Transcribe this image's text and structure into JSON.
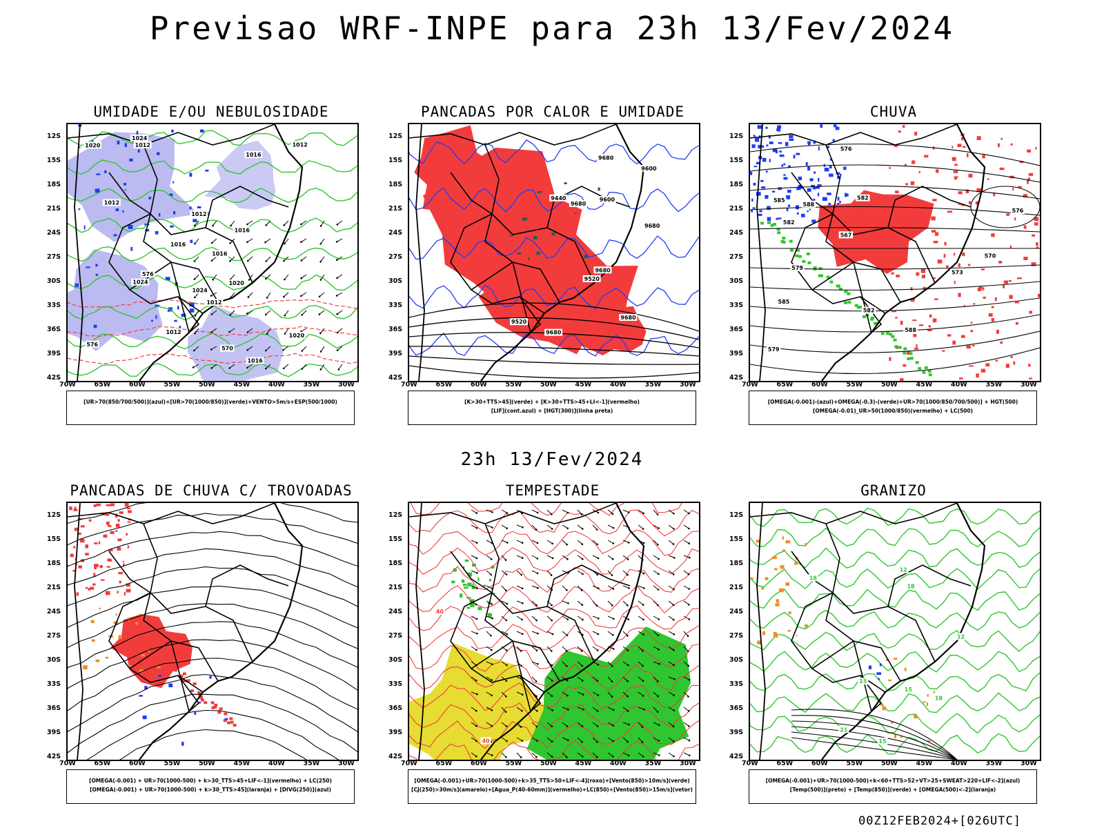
{
  "header": {
    "title": "Previsao WRF-INPE  para 23h 13/Fev/2024"
  },
  "mid_date": "23h 13/Fev/2024",
  "footer": "00Z12FEB2024+[026UTC]",
  "axes": {
    "lat_labels": [
      "12S",
      "15S",
      "18S",
      "21S",
      "24S",
      "27S",
      "30S",
      "33S",
      "36S",
      "39S",
      "42S"
    ],
    "lon_labels": [
      "70W",
      "65W",
      "60W",
      "55W",
      "50W",
      "45W",
      "40W",
      "35W",
      "30W"
    ]
  },
  "colors": {
    "red": "#f23c3c",
    "blue": "#1f3cf5",
    "green": "#2fc62f",
    "lavender": "#b4b4f0",
    "yellow": "#e6dc32",
    "orange": "#f08c28",
    "darkgreen": "#2f5a4a"
  },
  "panels": [
    {
      "id": "umidade",
      "title": "UMIDADE E/OU NEBULOSIDADE",
      "legend": [
        "[UR>70(850/700/500)](azul)+[UR>70(1000/850)](verde)+VENTO>5m/s+ESP(500/1000)"
      ],
      "contour_labels": [
        "1016",
        "1016",
        "1020",
        "1012",
        "1012",
        "1020",
        "1016",
        "1024",
        "1012",
        "1024",
        "1016",
        "1012",
        "1020",
        "1012",
        "1024",
        "1012",
        "1016",
        "570",
        "576",
        "576"
      ]
    },
    {
      "id": "pancadas_calor",
      "title": "PANCADAS POR CALOR E UMIDADE",
      "legend": [
        "[K>30+TTS>45](verde) + [K>30+TTS>45+LI<-1](vermelho)",
        "[LIF](cont.azul) + [HGT(300)](linha preta)"
      ],
      "contour_labels": [
        "9680",
        "9680",
        "9680",
        "9680",
        "9600",
        "9680",
        "9600",
        "9520",
        "9440",
        "9520",
        "9680"
      ]
    },
    {
      "id": "chuva",
      "title": "CHUVA",
      "legend": [
        "[OMEGA(-0.001)-(azul)+OMEGA(-0.3)-(verde)+UR>70(1000/850/700/500)] + HGT(500)",
        "[OMEGA(-0.01)_UR>50(1000/850)(vermelho) + LC(500)"
      ],
      "contour_labels": [
        "588",
        "588",
        "585",
        "582",
        "582",
        "585",
        "582",
        "579",
        "576",
        "573",
        "570",
        "567",
        "579",
        "576"
      ]
    },
    {
      "id": "trovoadas",
      "title": "PANCADAS DE CHUVA C/ TROVOADAS",
      "legend": [
        "[OMEGA(-0.001) + UR>70(1000-500) + k>30_TTS>45+LIF<-1](vermelho) + LC(250)",
        "[OMEGA(-0.001) + UR>70(1000-500) + k>30_TTS>45](laranja) + [DIVG(250)](azul)"
      ],
      "contour_labels": []
    },
    {
      "id": "tempestade",
      "title": "TEMPESTADE",
      "legend": [
        "[OMEGA(-0.001)+UR>70(1000-500)+k>35_TTS>50+LIF<-4](roxo)+[Vento(850)>10m/s](verde)",
        "[CJ(250)>30m/s](amarelo)+[Agua_P(40-60mm)](vermelho)+LC(850)+[Vento(850)>15m/s](vetor)"
      ],
      "contour_labels": [
        "40",
        "40"
      ]
    },
    {
      "id": "granizo",
      "title": "GRANIZO",
      "legend": [
        "[OMEGA(-0.001)+UR>70(1000-500)+k<60+TTS>52+VT>25+SWEAT>220+LIF<-2](azul)",
        "[Temp(500)](preto) + [Temp(850)](verde) + [OMEGA(500)<-2](laranja)"
      ],
      "contour_labels": [
        "21",
        "18",
        "15",
        "12",
        "18",
        "15",
        "12",
        "15",
        "18"
      ]
    }
  ]
}
